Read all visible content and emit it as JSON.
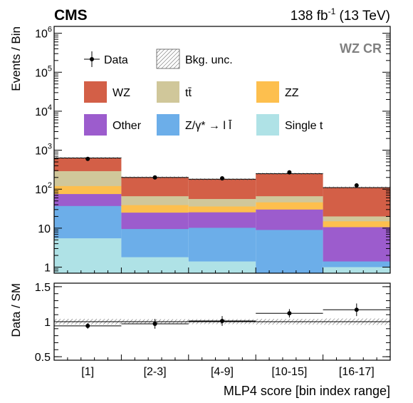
{
  "header": {
    "experiment": "CMS",
    "lumi_value": "138 fb",
    "lumi_exp": "-1",
    "lumi_energy": " (13 TeV)",
    "region": "WZ CR"
  },
  "chart_data": [
    {
      "type": "bar",
      "stacked": true,
      "log_y": true,
      "ylabel": "Events / Bin",
      "ylim": [
        0.7,
        1500000
      ],
      "y_tick_labels": [
        "1",
        "10",
        "10",
        "10",
        "10",
        "10",
        "10"
      ],
      "y_tick_exponents": [
        "",
        "",
        "2",
        "3",
        "4",
        "5",
        "6"
      ],
      "categories": [
        "[1]",
        "[2-3]",
        "[4-9]",
        "[10-15]",
        "[16-17]"
      ],
      "series": [
        {
          "name": "Single t",
          "color": "#afe2e6",
          "values": [
            5.5,
            1.8,
            1.4,
            0.7,
            1.0
          ]
        },
        {
          "name": "Z/γ* → l l̄",
          "color": "#6caee9",
          "values": [
            31.5,
            7.7,
            8.8,
            8.3,
            0.4
          ]
        },
        {
          "name": "Other",
          "color": "#9c5ccd",
          "values": [
            38,
            15.5,
            15.3,
            21,
            9.2
          ]
        },
        {
          "name": "ZZ",
          "color": "#fdbf4e",
          "values": [
            45,
            14,
            10.5,
            16,
            4.4
          ]
        },
        {
          "name": "tt̄",
          "color": "#d0c79a",
          "values": [
            170,
            27,
            20,
            20,
            5
          ]
        },
        {
          "name": "WZ",
          "color": "#d35f47",
          "values": [
            340,
            134,
            124,
            184,
            90
          ]
        }
      ],
      "data_points": [
        600,
        200,
        190,
        270,
        125
      ],
      "legend": {
        "position": "top-left",
        "data_label": "Data",
        "unc_label": "Bkg. unc.",
        "order": [
          {
            "label": "WZ",
            "color": "#d35f47"
          },
          {
            "label": "tt̄",
            "color": "#d0c79a"
          },
          {
            "label": "ZZ",
            "color": "#fdbf4e"
          },
          {
            "label": "Other",
            "color": "#9c5ccd"
          },
          {
            "label": "Z/γ* → l l̄",
            "color": "#6caee9"
          },
          {
            "label": "Single t",
            "color": "#afe2e6"
          }
        ]
      }
    },
    {
      "type": "scatter",
      "ylabel": "Data / SM",
      "xlabel": "MLP4 score [bin index range]",
      "ylim": [
        0.45,
        1.55
      ],
      "y_ticks": [
        0.5,
        1,
        1.5
      ],
      "y_tick_labels": [
        "0.5",
        "1",
        "1.5"
      ],
      "categories": [
        "[1]",
        "[2-3]",
        "[4-9]",
        "[10-15]",
        "[16-17]"
      ],
      "values": [
        0.94,
        0.97,
        1.01,
        1.12,
        1.17
      ],
      "errors": [
        0.04,
        0.07,
        0.07,
        0.06,
        0.09
      ],
      "unc_band_halfwidth": [
        0.04,
        0.035,
        0.035,
        0.04,
        0.045
      ]
    }
  ]
}
